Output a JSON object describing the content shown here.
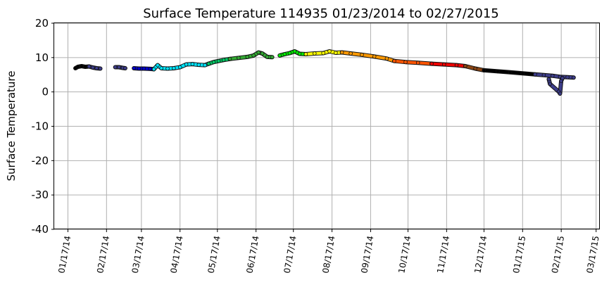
{
  "chart_data": {
    "type": "scatter",
    "title": "Surface Temperature 114935  01/23/2014 to 02/27/2015",
    "xlabel": "",
    "ylabel": "Surface Temperature",
    "ylim": [
      -40,
      20
    ],
    "xlim": [
      "2014-01-06",
      "2015-03-20"
    ],
    "y_ticks": [
      20,
      10,
      0,
      -10,
      -20,
      -30,
      -40
    ],
    "x_ticks": [
      {
        "date": "2014-01-17",
        "label": "01/17/14"
      },
      {
        "date": "2014-02-17",
        "label": "02/17/14"
      },
      {
        "date": "2014-03-17",
        "label": "03/17/14"
      },
      {
        "date": "2014-04-17",
        "label": "04/17/14"
      },
      {
        "date": "2014-05-17",
        "label": "05/17/14"
      },
      {
        "date": "2014-06-17",
        "label": "06/17/14"
      },
      {
        "date": "2014-07-17",
        "label": "07/17/14"
      },
      {
        "date": "2014-08-17",
        "label": "08/17/14"
      },
      {
        "date": "2014-09-17",
        "label": "09/17/14"
      },
      {
        "date": "2014-10-17",
        "label": "10/17/14"
      },
      {
        "date": "2014-11-17",
        "label": "11/17/14"
      },
      {
        "date": "2014-12-17",
        "label": "12/17/14"
      },
      {
        "date": "2015-01-17",
        "label": "01/17/15"
      },
      {
        "date": "2015-02-17",
        "label": "02/17/15"
      },
      {
        "date": "2015-03-17",
        "label": "03/17/15"
      }
    ],
    "grid": true,
    "legend": "none",
    "series": [
      {
        "color": "#000000",
        "points": [
          [
            "2014-01-23",
            6.9
          ],
          [
            "2014-01-25",
            7.3
          ],
          [
            "2014-01-28",
            7.5
          ],
          [
            "2014-01-31",
            7.3
          ],
          [
            "2014-02-03",
            7.4
          ]
        ]
      },
      {
        "color": "#3d3d8a",
        "points": [
          [
            "2014-02-03",
            7.4
          ],
          [
            "2014-02-06",
            7.1
          ],
          [
            "2014-02-09",
            6.9
          ],
          [
            "2014-02-12",
            6.8
          ]
        ]
      },
      {
        "color": "#3d3d8a",
        "points": [
          [
            "2014-02-24",
            7.2
          ],
          [
            "2014-02-27",
            7.2
          ],
          [
            "2014-03-02",
            7.0
          ],
          [
            "2014-03-04",
            6.9
          ]
        ]
      },
      {
        "color": "#0000cc",
        "points": [
          [
            "2014-03-11",
            6.9
          ],
          [
            "2014-03-15",
            6.8
          ],
          [
            "2014-03-19",
            6.8
          ],
          [
            "2014-03-24",
            6.7
          ],
          [
            "2014-03-27",
            6.6
          ]
        ]
      },
      {
        "color": "#00e5ff",
        "points": [
          [
            "2014-03-27",
            6.6
          ],
          [
            "2014-03-30",
            7.8
          ],
          [
            "2014-04-02",
            6.9
          ],
          [
            "2014-04-07",
            6.8
          ],
          [
            "2014-04-12",
            6.9
          ],
          [
            "2014-04-17",
            7.2
          ],
          [
            "2014-04-22",
            8.0
          ],
          [
            "2014-04-27",
            8.1
          ],
          [
            "2014-05-02",
            7.9
          ],
          [
            "2014-05-07",
            7.8
          ],
          [
            "2014-05-10",
            8.2
          ]
        ]
      },
      {
        "color": "#00cc66",
        "points": [
          [
            "2014-05-10",
            8.2
          ],
          [
            "2014-05-14",
            8.7
          ],
          [
            "2014-05-18",
            9.0
          ],
          [
            "2014-05-22",
            9.3
          ],
          [
            "2014-05-27",
            9.6
          ]
        ]
      },
      {
        "color": "#33aa33",
        "points": [
          [
            "2014-05-27",
            9.6
          ],
          [
            "2014-06-03",
            9.9
          ],
          [
            "2014-06-10",
            10.2
          ],
          [
            "2014-06-15",
            10.6
          ],
          [
            "2014-06-19",
            11.5
          ],
          [
            "2014-06-22",
            11.2
          ],
          [
            "2014-06-26",
            10.2
          ],
          [
            "2014-06-30",
            10.1
          ]
        ]
      },
      {
        "color": "#00ee00",
        "points": [
          [
            "2014-07-06",
            10.6
          ],
          [
            "2014-07-10",
            11.0
          ],
          [
            "2014-07-14",
            11.3
          ],
          [
            "2014-07-18",
            11.8
          ],
          [
            "2014-07-22",
            11.1
          ],
          [
            "2014-07-27",
            11.0
          ]
        ]
      },
      {
        "color": "#ffff00",
        "points": [
          [
            "2014-07-27",
            11.0
          ],
          [
            "2014-08-03",
            11.2
          ],
          [
            "2014-08-10",
            11.3
          ],
          [
            "2014-08-15",
            11.8
          ],
          [
            "2014-08-20",
            11.4
          ],
          [
            "2014-08-25",
            11.5
          ]
        ]
      },
      {
        "color": "#ff9900",
        "points": [
          [
            "2014-08-25",
            11.5
          ],
          [
            "2014-09-01",
            11.2
          ],
          [
            "2014-09-10",
            10.8
          ],
          [
            "2014-09-20",
            10.3
          ],
          [
            "2014-09-30",
            9.7
          ],
          [
            "2014-10-06",
            9.0
          ]
        ]
      },
      {
        "color": "#ff5500",
        "points": [
          [
            "2014-10-06",
            9.0
          ],
          [
            "2014-10-15",
            8.7
          ],
          [
            "2014-10-25",
            8.5
          ],
          [
            "2014-11-05",
            8.2
          ]
        ]
      },
      {
        "color": "#ee0000",
        "points": [
          [
            "2014-11-05",
            8.2
          ],
          [
            "2014-11-15",
            8.0
          ],
          [
            "2014-11-25",
            7.8
          ],
          [
            "2014-12-02",
            7.5
          ]
        ]
      },
      {
        "color": "#8b4513",
        "points": [
          [
            "2014-12-02",
            7.5
          ],
          [
            "2014-12-10",
            6.8
          ],
          [
            "2014-12-17",
            6.3
          ]
        ]
      },
      {
        "color": "#000000",
        "points": [
          [
            "2014-12-17",
            6.3
          ],
          [
            "2014-12-28",
            6.0
          ],
          [
            "2015-01-07",
            5.7
          ],
          [
            "2015-01-17",
            5.4
          ],
          [
            "2015-01-27",
            5.1
          ]
        ]
      },
      {
        "color": "#3d3d8a",
        "points": [
          [
            "2015-01-27",
            5.1
          ],
          [
            "2015-02-03",
            4.9
          ],
          [
            "2015-02-10",
            4.7
          ],
          [
            "2015-02-16",
            4.4
          ],
          [
            "2015-02-22",
            4.3
          ],
          [
            "2015-02-27",
            4.2
          ]
        ]
      },
      {
        "color": "#3d3d8a",
        "points": [
          [
            "2015-02-07",
            3.7
          ],
          [
            "2015-02-08",
            2.3
          ],
          [
            "2015-02-15",
            0.1
          ],
          [
            "2015-02-16",
            -0.5
          ],
          [
            "2015-02-17",
            3.2
          ],
          [
            "2015-02-18",
            4.0
          ]
        ]
      }
    ]
  }
}
